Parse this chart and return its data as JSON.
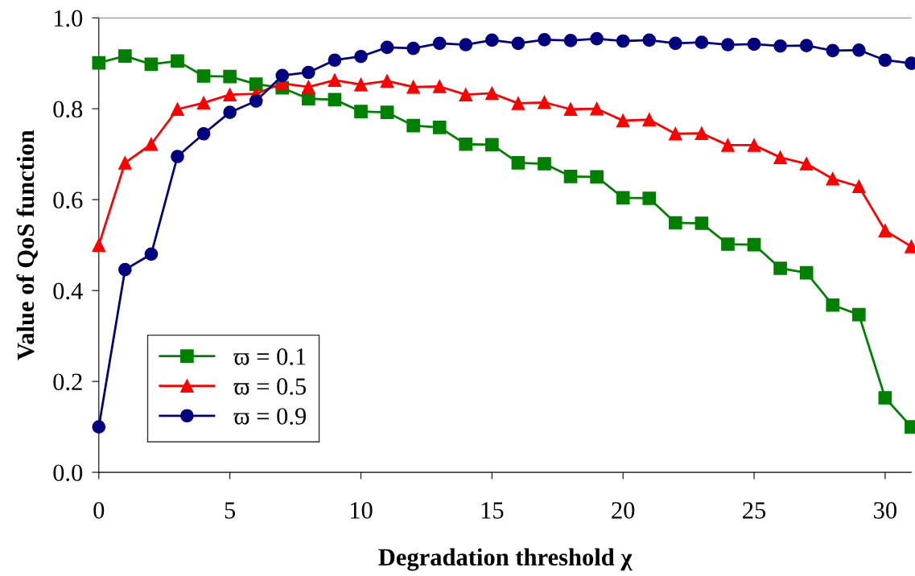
{
  "chart_data": {
    "type": "line",
    "xlabel": "Degradation threshold χ",
    "ylabel": "Value of QoS function",
    "x": [
      0,
      1,
      2,
      3,
      4,
      5,
      6,
      7,
      8,
      9,
      10,
      11,
      12,
      13,
      14,
      15,
      16,
      17,
      18,
      19,
      20,
      21,
      22,
      23,
      24,
      25,
      26,
      27,
      28,
      29,
      30,
      31
    ],
    "series": [
      {
        "name": "ϖ = 0.1",
        "color": "#008000",
        "marker": "square",
        "values": [
          0.901,
          0.916,
          0.898,
          0.905,
          0.872,
          0.871,
          0.854,
          0.846,
          0.822,
          0.82,
          0.794,
          0.792,
          0.763,
          0.759,
          0.722,
          0.721,
          0.681,
          0.679,
          0.651,
          0.65,
          0.604,
          0.603,
          0.549,
          0.548,
          0.502,
          0.501,
          0.449,
          0.439,
          0.368,
          0.347,
          0.164,
          0.1
        ]
      },
      {
        "name": "ϖ = 0.5",
        "color": "#ff0000",
        "marker": "triangle",
        "values": [
          0.5,
          0.681,
          0.722,
          0.799,
          0.813,
          0.831,
          0.833,
          0.856,
          0.848,
          0.863,
          0.853,
          0.861,
          0.848,
          0.849,
          0.831,
          0.834,
          0.812,
          0.814,
          0.799,
          0.8,
          0.774,
          0.776,
          0.745,
          0.746,
          0.72,
          0.72,
          0.693,
          0.679,
          0.646,
          0.629,
          0.532,
          0.497
        ]
      },
      {
        "name": "ϖ = 0.9",
        "color": "#000080",
        "marker": "circle",
        "values": [
          0.1,
          0.446,
          0.48,
          0.695,
          0.745,
          0.792,
          0.817,
          0.873,
          0.88,
          0.907,
          0.915,
          0.935,
          0.933,
          0.944,
          0.941,
          0.951,
          0.944,
          0.952,
          0.95,
          0.954,
          0.949,
          0.951,
          0.944,
          0.946,
          0.941,
          0.942,
          0.938,
          0.939,
          0.928,
          0.929,
          0.907,
          0.9
        ]
      }
    ],
    "xlim": [
      0,
      31
    ],
    "ylim": [
      0,
      1.0
    ],
    "xticks": [
      0,
      5,
      10,
      15,
      20,
      25,
      30
    ],
    "yticks": [
      {
        "value": 0,
        "label": "0.0"
      },
      {
        "value": 0.2,
        "label": "0.2"
      },
      {
        "value": 0.4,
        "label": "0.4"
      },
      {
        "value": 0.6,
        "label": "0.6"
      },
      {
        "value": 0.8,
        "label": "0.8"
      },
      {
        "value": 1.0,
        "label": "1.0"
      }
    ],
    "grid": false,
    "legend": "bottom left",
    "line_style": "solid"
  }
}
